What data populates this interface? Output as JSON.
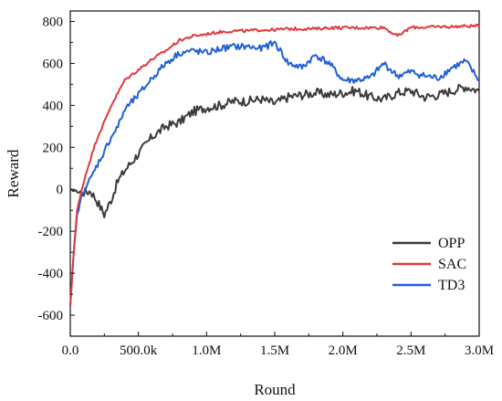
{
  "chart_data": {
    "type": "line",
    "title": "",
    "xlabel": "Round",
    "ylabel": "Reward",
    "xlim": [
      0,
      3000000
    ],
    "ylim": [
      -700,
      850
    ],
    "x_ticks": [
      0,
      500000,
      1000000,
      1500000,
      2000000,
      2500000,
      3000000
    ],
    "x_tick_labels": [
      "0.0",
      "500.0k",
      "1.0M",
      "1.5M",
      "2.0M",
      "2.5M",
      "3.0M"
    ],
    "y_ticks": [
      -600,
      -400,
      -200,
      0,
      200,
      400,
      600,
      800
    ],
    "y_tick_labels": [
      "-600",
      "-400",
      "-200",
      "0",
      "200",
      "400",
      "600",
      "800"
    ],
    "grid": false,
    "legend_position": "bottom-right",
    "x": [
      0,
      25000,
      50000,
      100000,
      150000,
      200000,
      250000,
      300000,
      350000,
      400000,
      500000,
      600000,
      700000,
      800000,
      900000,
      1000000,
      1100000,
      1200000,
      1300000,
      1400000,
      1500000,
      1600000,
      1700000,
      1800000,
      1900000,
      2000000,
      2100000,
      2200000,
      2300000,
      2400000,
      2500000,
      2600000,
      2700000,
      2800000,
      2900000,
      3000000
    ],
    "series": [
      {
        "name": "OPP",
        "color": "#3b3b3b",
        "values": [
          -5,
          -5,
          -10,
          -15,
          -8,
          -60,
          -120,
          -50,
          40,
          90,
          170,
          250,
          300,
          320,
          370,
          390,
          400,
          420,
          420,
          430,
          410,
          440,
          450,
          460,
          450,
          460,
          470,
          440,
          430,
          460,
          470,
          440,
          450,
          470,
          490,
          470
        ]
      },
      {
        "name": "SAC",
        "color": "#e0393e",
        "values": [
          -560,
          -300,
          -100,
          40,
          150,
          250,
          320,
          400,
          460,
          520,
          570,
          620,
          660,
          710,
          730,
          740,
          750,
          755,
          755,
          760,
          760,
          765,
          765,
          765,
          770,
          770,
          770,
          770,
          772,
          730,
          772,
          772,
          775,
          775,
          778,
          778
        ]
      },
      {
        "name": "TD3",
        "color": "#2060d8",
        "values": [
          -560,
          -300,
          -120,
          0,
          50,
          120,
          180,
          250,
          300,
          380,
          450,
          530,
          600,
          650,
          660,
          650,
          670,
          680,
          680,
          670,
          700,
          600,
          580,
          640,
          600,
          520,
          520,
          530,
          600,
          540,
          560,
          540,
          530,
          580,
          610,
          520
        ]
      }
    ]
  }
}
